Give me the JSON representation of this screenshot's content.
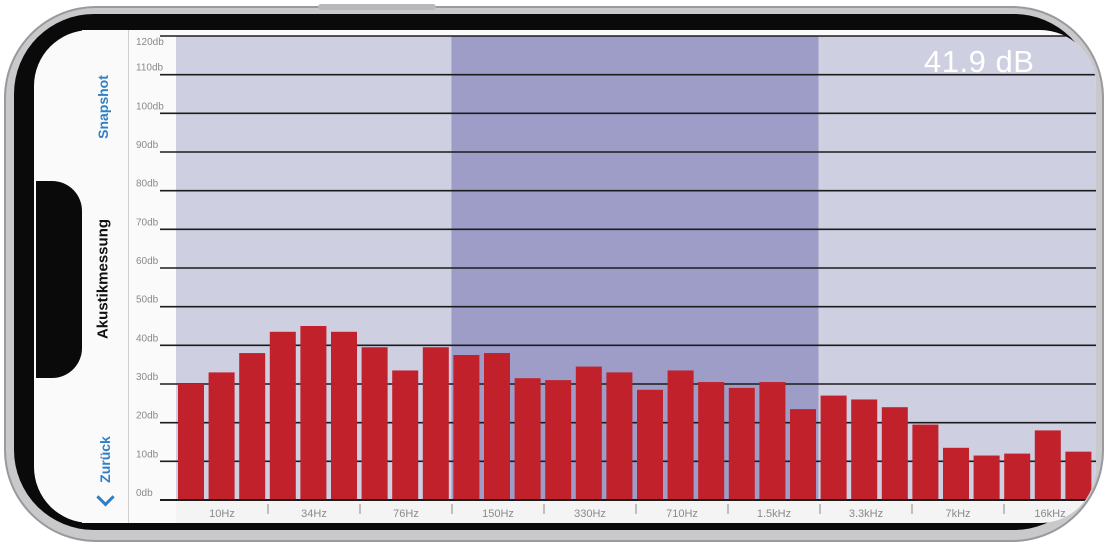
{
  "screen": {
    "back_label": "Zurück",
    "title": "Akustikmessung",
    "snapshot_label": "Snapshot",
    "level_readout": "41.9 dB"
  },
  "colors": {
    "bar": "#c0212a",
    "band_light": "#cfcfe2",
    "band_dark": "#9d9dc8",
    "grid": "#1c1c1c",
    "accent": "#2f7fc6"
  },
  "icons": {
    "back": "chevron-left-icon"
  },
  "chart_data": {
    "type": "bar",
    "ylim": [
      0,
      120
    ],
    "y_ticks": [
      {
        "value": 0,
        "label": "0db"
      },
      {
        "value": 10,
        "label": "10db"
      },
      {
        "value": 20,
        "label": "20db"
      },
      {
        "value": 30,
        "label": "30db"
      },
      {
        "value": 40,
        "label": "40db"
      },
      {
        "value": 50,
        "label": "50db"
      },
      {
        "value": 60,
        "label": "60db"
      },
      {
        "value": 70,
        "label": "70db"
      },
      {
        "value": 80,
        "label": "80db"
      },
      {
        "value": 90,
        "label": "90db"
      },
      {
        "value": 100,
        "label": "100db"
      },
      {
        "value": 110,
        "label": "110db"
      },
      {
        "value": 120,
        "label": "120db"
      }
    ],
    "x_tick_labels": [
      "10Hz",
      "34Hz",
      "76Hz",
      "150Hz",
      "330Hz",
      "710Hz",
      "1.5kHz",
      "3.3kHz",
      "7kHz",
      "16kHz"
    ],
    "values": [
      30,
      33,
      38,
      43.5,
      45,
      43.5,
      39.5,
      33.5,
      39.5,
      37.5,
      38,
      31.5,
      31,
      34.5,
      33,
      28.5,
      33.5,
      30.5,
      29,
      30.5,
      23.5,
      27,
      26,
      24,
      19.5,
      13.5,
      11.5,
      12,
      18,
      12.5
    ],
    "bands": [
      {
        "from_bar": 0,
        "to_bar": 9,
        "shade": "light"
      },
      {
        "from_bar": 9,
        "to_bar": 21,
        "shade": "dark"
      },
      {
        "from_bar": 21,
        "to_bar": 30,
        "shade": "light"
      }
    ]
  }
}
